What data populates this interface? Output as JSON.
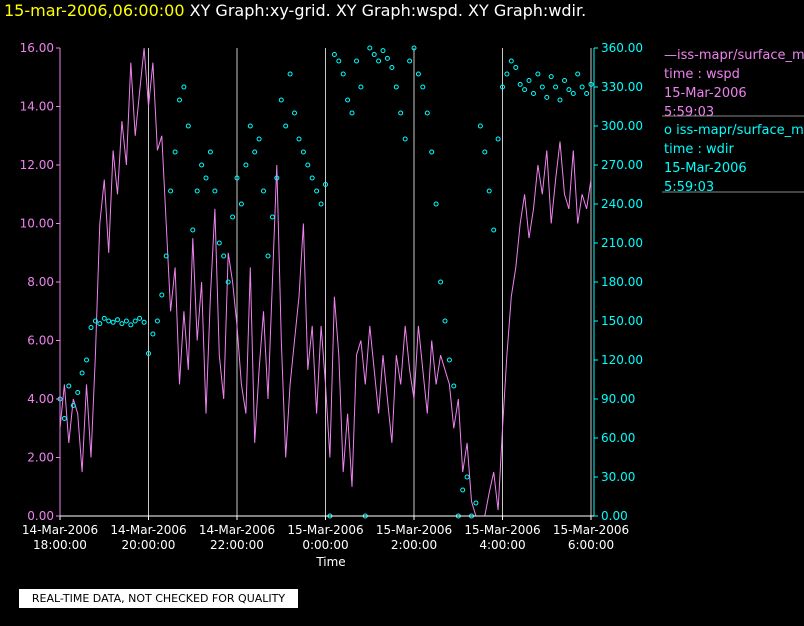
{
  "title": {
    "date": "15-mar-2006,06:00:00",
    "graphs": " XY Graph:xy-grid.  XY Graph:wspd.  XY Graph:wdir."
  },
  "legend": [
    {
      "symbol": "—",
      "line1": "iss-mapr/surface_m",
      "line2": "time : wspd",
      "line3": "15-Mar-2006",
      "line4": "5:59:03"
    },
    {
      "symbol": "o",
      "line1": "iss-mapr/surface_m",
      "line2": "time : wdir",
      "line3": "15-Mar-2006",
      "line4": "5:59:03"
    }
  ],
  "qc_notice": "REAL-TIME DATA, NOT CHECKED FOR QUALITY",
  "colors": {
    "wspd": "#ee82ee",
    "wdir": "#00ffff",
    "grid": "#c8c8c8",
    "left_axis": "#ee82ee",
    "right_axis": "#00ffff"
  },
  "chart_data": {
    "type": "line",
    "xlabel": "Time",
    "x_ticks": [
      {
        "d": "14-Mar-2006",
        "t": "18:00:00",
        "h": 0
      },
      {
        "d": "14-Mar-2006",
        "t": "20:00:00",
        "h": 2
      },
      {
        "d": "14-Mar-2006",
        "t": "22:00:00",
        "h": 4
      },
      {
        "d": "15-Mar-2006",
        "t": "0:00:00",
        "h": 6
      },
      {
        "d": "15-Mar-2006",
        "t": "2:00:00",
        "h": 8
      },
      {
        "d": "15-Mar-2006",
        "t": "4:00:00",
        "h": 10
      },
      {
        "d": "15-Mar-2006",
        "t": "6:00:00",
        "h": 12
      }
    ],
    "y_left": {
      "min": 0,
      "max": 16,
      "ticks": [
        "0.00",
        "2.00",
        "4.00",
        "6.00",
        "8.00",
        "10.00",
        "12.00",
        "14.00",
        "16.00"
      ]
    },
    "y_right": {
      "min": 0,
      "max": 360,
      "ticks": [
        "0.00",
        "30.00",
        "60.00",
        "90.00",
        "120.00",
        "150.00",
        "180.00",
        "210.00",
        "240.00",
        "270.00",
        "300.00",
        "330.00",
        "360.00"
      ]
    },
    "grid": "vertical",
    "series": [
      {
        "name": "wspd",
        "axis": "left",
        "style": "line",
        "x": [
          0,
          0.1,
          0.2,
          0.3,
          0.4,
          0.5,
          0.6,
          0.7,
          0.8,
          0.9,
          1.0,
          1.1,
          1.2,
          1.3,
          1.4,
          1.5,
          1.6,
          1.7,
          1.8,
          1.9,
          2.0,
          2.1,
          2.2,
          2.3,
          2.4,
          2.5,
          2.6,
          2.7,
          2.8,
          2.9,
          3.0,
          3.1,
          3.2,
          3.3,
          3.4,
          3.5,
          3.6,
          3.7,
          3.8,
          3.9,
          4.0,
          4.1,
          4.2,
          4.3,
          4.4,
          4.5,
          4.6,
          4.7,
          4.8,
          4.9,
          5.0,
          5.1,
          5.2,
          5.3,
          5.4,
          5.5,
          5.6,
          5.7,
          5.8,
          5.9,
          6.0,
          6.1,
          6.2,
          6.3,
          6.4,
          6.5,
          6.6,
          6.7,
          6.8,
          6.9,
          7.0,
          7.1,
          7.2,
          7.3,
          7.4,
          7.5,
          7.6,
          7.7,
          7.8,
          7.9,
          8.0,
          8.1,
          8.2,
          8.3,
          8.4,
          8.5,
          8.6,
          8.7,
          8.8,
          8.9,
          9.0,
          9.1,
          9.2,
          9.3,
          9.4,
          9.5,
          9.6,
          9.7,
          9.8,
          9.9,
          10.0,
          10.1,
          10.2,
          10.3,
          10.4,
          10.5,
          10.6,
          10.7,
          10.8,
          10.9,
          11.0,
          11.1,
          11.2,
          11.3,
          11.4,
          11.5,
          11.6,
          11.7,
          11.8,
          11.9,
          12.0
        ],
        "values": [
          3.0,
          4.5,
          2.5,
          4.0,
          3.5,
          1.5,
          4.5,
          2.0,
          5.5,
          10.0,
          11.5,
          9.0,
          12.5,
          11.0,
          13.5,
          12.0,
          15.5,
          13.0,
          14.5,
          16.0,
          14.0,
          15.5,
          12.5,
          13.0,
          10.0,
          7.0,
          8.5,
          4.5,
          7.0,
          5.0,
          9.5,
          6.0,
          8.0,
          3.5,
          7.5,
          10.5,
          5.5,
          4.0,
          9.0,
          8.0,
          6.5,
          4.5,
          3.5,
          8.5,
          2.5,
          5.0,
          7.0,
          4.0,
          8.0,
          12.0,
          6.0,
          2.0,
          4.5,
          6.0,
          7.5,
          10.0,
          5.0,
          6.5,
          3.5,
          6.5,
          4.5,
          2.0,
          7.5,
          5.5,
          1.5,
          3.5,
          1.0,
          5.5,
          6.0,
          4.5,
          6.5,
          5.0,
          3.5,
          5.5,
          4.0,
          2.5,
          5.5,
          4.5,
          6.5,
          5.0,
          4.0,
          6.5,
          5.0,
          3.5,
          6.0,
          4.5,
          5.5,
          5.0,
          4.5,
          3.0,
          4.0,
          1.5,
          2.5,
          0.5,
          0.0,
          0.0,
          0.0,
          0.8,
          1.5,
          0.2,
          3.0,
          5.5,
          7.5,
          8.5,
          10.0,
          11.0,
          9.5,
          10.5,
          12.0,
          11.0,
          12.5,
          10.0,
          11.5,
          12.8,
          11.0,
          10.5,
          12.5,
          10.0,
          11.0,
          10.5,
          11.5
        ]
      },
      {
        "name": "wdir",
        "axis": "right",
        "style": "scatter",
        "x": [
          0,
          0.1,
          0.2,
          0.3,
          0.4,
          0.5,
          0.6,
          0.7,
          0.8,
          0.9,
          1.0,
          1.1,
          1.2,
          1.3,
          1.4,
          1.5,
          1.6,
          1.7,
          1.8,
          1.9,
          2.0,
          2.1,
          2.2,
          2.3,
          2.4,
          2.5,
          2.6,
          2.7,
          2.8,
          2.9,
          3.0,
          3.1,
          3.2,
          3.3,
          3.4,
          3.5,
          3.6,
          3.7,
          3.8,
          3.9,
          4.0,
          4.1,
          4.2,
          4.3,
          4.4,
          4.5,
          4.6,
          4.7,
          4.8,
          4.9,
          5.0,
          5.1,
          5.2,
          5.3,
          5.4,
          5.5,
          5.6,
          5.7,
          5.8,
          5.9,
          6.0,
          6.1,
          6.2,
          6.3,
          6.4,
          6.5,
          6.6,
          6.7,
          6.8,
          6.9,
          7.0,
          7.1,
          7.2,
          7.3,
          7.4,
          7.5,
          7.6,
          7.7,
          7.8,
          7.9,
          8.0,
          8.1,
          8.2,
          8.3,
          8.4,
          8.5,
          8.6,
          8.7,
          8.8,
          8.9,
          9.0,
          9.1,
          9.2,
          9.3,
          9.4,
          9.5,
          9.6,
          9.7,
          9.8,
          9.9,
          10.0,
          10.1,
          10.2,
          10.3,
          10.4,
          10.5,
          10.6,
          10.7,
          10.8,
          10.9,
          11.0,
          11.1,
          11.2,
          11.3,
          11.4,
          11.5,
          11.6,
          11.7,
          11.8,
          11.9,
          12.0
        ],
        "values": [
          90,
          75,
          100,
          85,
          95,
          110,
          120,
          145,
          150,
          148,
          152,
          150,
          149,
          151,
          148,
          150,
          147,
          150,
          152,
          149,
          125,
          140,
          150,
          170,
          200,
          250,
          280,
          320,
          330,
          300,
          220,
          250,
          270,
          260,
          280,
          250,
          210,
          200,
          180,
          230,
          260,
          240,
          270,
          300,
          280,
          290,
          250,
          200,
          230,
          260,
          320,
          300,
          340,
          310,
          290,
          280,
          270,
          260,
          250,
          240,
          255,
          0,
          355,
          350,
          340,
          320,
          310,
          350,
          330,
          0,
          360,
          355,
          350,
          358,
          352,
          345,
          330,
          310,
          290,
          350,
          360,
          340,
          330,
          310,
          280,
          240,
          180,
          150,
          120,
          100,
          0,
          20,
          30,
          0,
          10,
          300,
          280,
          250,
          220,
          290,
          330,
          340,
          350,
          345,
          332,
          328,
          335,
          325,
          340,
          330,
          322,
          338,
          330,
          320,
          335,
          328,
          325,
          340,
          330,
          325,
          332
        ]
      }
    ]
  }
}
